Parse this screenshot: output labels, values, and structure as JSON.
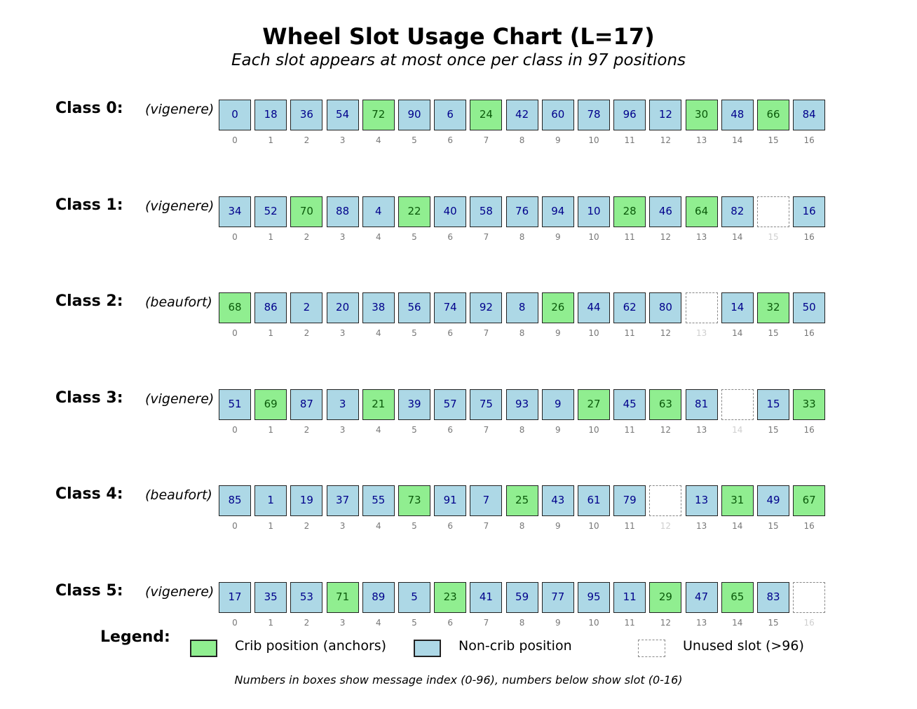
{
  "title": "Wheel Slot Usage Chart (L=17)",
  "subtitle": "Each slot appears at most once per class in 97 positions",
  "classes": [
    {
      "label": "Class 0:",
      "cipher": "(vigenere)",
      "values": [
        "0",
        "18",
        "36",
        "54",
        "72",
        "90",
        "6",
        "24",
        "42",
        "60",
        "78",
        "96",
        "12",
        "30",
        "48",
        "66",
        "84"
      ],
      "status": [
        "n",
        "n",
        "n",
        "n",
        "c",
        "n",
        "n",
        "c",
        "n",
        "n",
        "n",
        "n",
        "n",
        "c",
        "n",
        "c",
        "n"
      ]
    },
    {
      "label": "Class 1:",
      "cipher": "(vigenere)",
      "values": [
        "34",
        "52",
        "70",
        "88",
        "4",
        "22",
        "40",
        "58",
        "76",
        "94",
        "10",
        "28",
        "46",
        "64",
        "82",
        "",
        "16"
      ],
      "status": [
        "n",
        "n",
        "c",
        "n",
        "n",
        "c",
        "n",
        "n",
        "n",
        "n",
        "n",
        "c",
        "n",
        "c",
        "n",
        "u",
        "n"
      ]
    },
    {
      "label": "Class 2:",
      "cipher": "(beaufort)",
      "values": [
        "68",
        "86",
        "2",
        "20",
        "38",
        "56",
        "74",
        "92",
        "8",
        "26",
        "44",
        "62",
        "80",
        "",
        "14",
        "32",
        "50"
      ],
      "status": [
        "c",
        "n",
        "n",
        "n",
        "n",
        "n",
        "n",
        "n",
        "n",
        "c",
        "n",
        "n",
        "n",
        "u",
        "n",
        "c",
        "n"
      ]
    },
    {
      "label": "Class 3:",
      "cipher": "(vigenere)",
      "values": [
        "51",
        "69",
        "87",
        "3",
        "21",
        "39",
        "57",
        "75",
        "93",
        "9",
        "27",
        "45",
        "63",
        "81",
        "",
        "15",
        "33"
      ],
      "status": [
        "n",
        "c",
        "n",
        "n",
        "c",
        "n",
        "n",
        "n",
        "n",
        "n",
        "c",
        "n",
        "c",
        "n",
        "u",
        "n",
        "c"
      ]
    },
    {
      "label": "Class 4:",
      "cipher": "(beaufort)",
      "values": [
        "85",
        "1",
        "19",
        "37",
        "55",
        "73",
        "91",
        "7",
        "25",
        "43",
        "61",
        "79",
        "",
        "13",
        "31",
        "49",
        "67"
      ],
      "status": [
        "n",
        "n",
        "n",
        "n",
        "n",
        "c",
        "n",
        "n",
        "c",
        "n",
        "n",
        "n",
        "u",
        "n",
        "c",
        "n",
        "c"
      ]
    },
    {
      "label": "Class 5:",
      "cipher": "(vigenere)",
      "values": [
        "17",
        "35",
        "53",
        "71",
        "89",
        "5",
        "23",
        "41",
        "59",
        "77",
        "95",
        "11",
        "29",
        "47",
        "65",
        "83",
        ""
      ],
      "status": [
        "n",
        "n",
        "n",
        "c",
        "n",
        "n",
        "c",
        "n",
        "n",
        "n",
        "n",
        "n",
        "c",
        "n",
        "c",
        "n",
        "u"
      ]
    }
  ],
  "slot_indices": [
    "0",
    "1",
    "2",
    "3",
    "4",
    "5",
    "6",
    "7",
    "8",
    "9",
    "10",
    "11",
    "12",
    "13",
    "14",
    "15",
    "16"
  ],
  "legend": {
    "title": "Legend:",
    "crib": "Crib position (anchors)",
    "noncrib": "Non-crib position",
    "unused": "Unused slot (>96)"
  },
  "colors": {
    "crib": "#90ee90",
    "noncrib": "#add8e6",
    "unused": "#ffffff"
  },
  "footnote": "Numbers in boxes show message index (0-96), numbers below show slot (0-16)"
}
